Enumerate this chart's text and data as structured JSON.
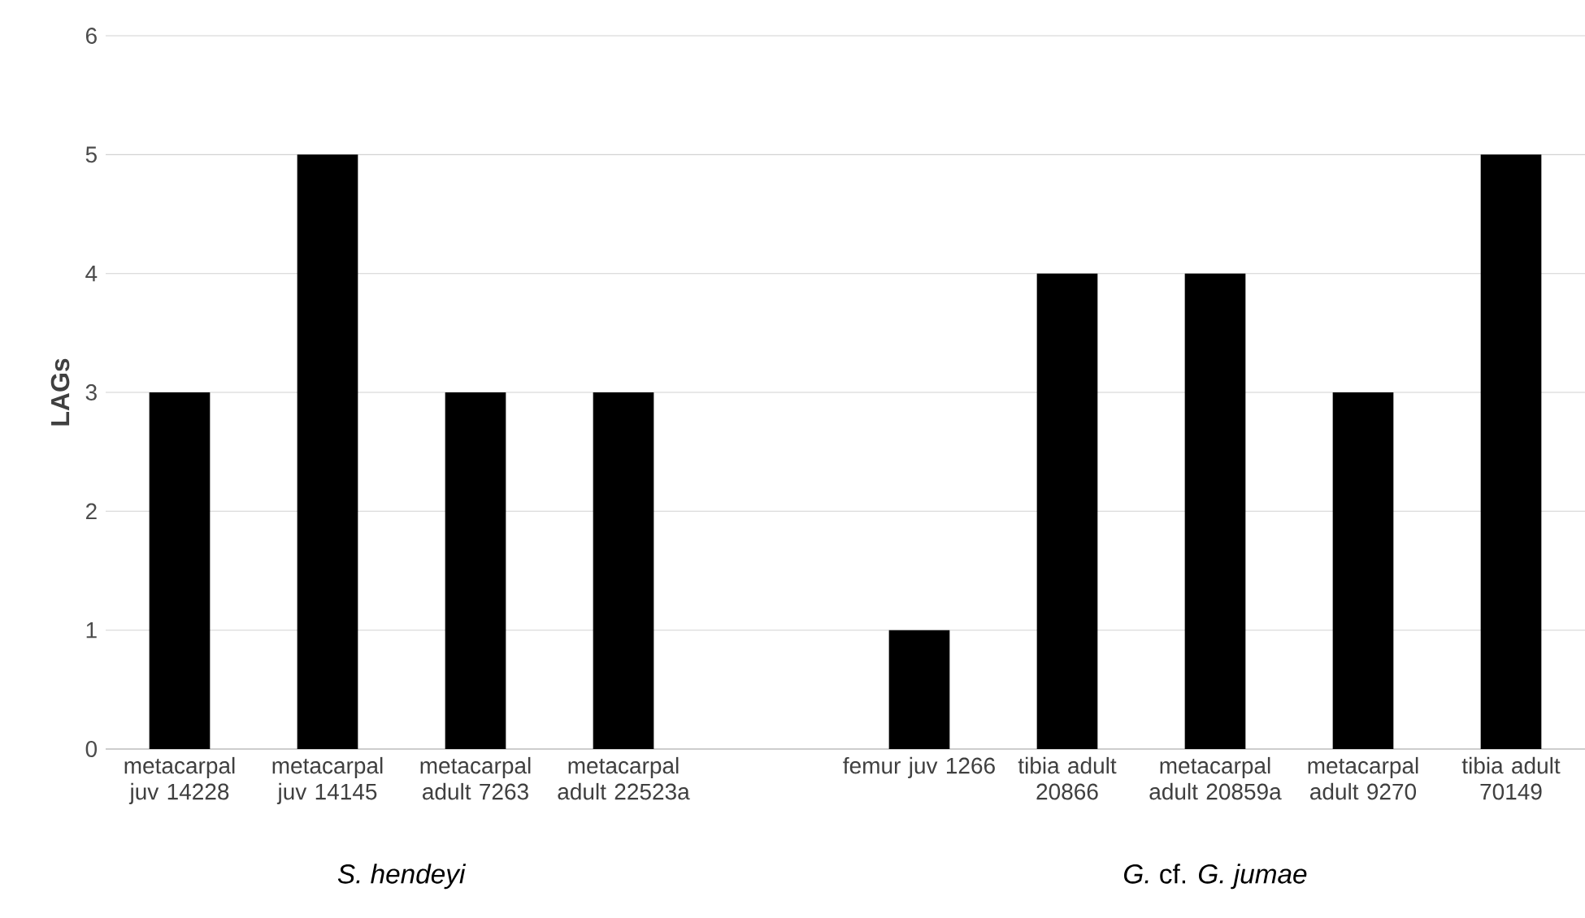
{
  "chart_data": {
    "type": "bar",
    "ylabel": "LAGs",
    "categories": [
      "metacarpal juv 14228",
      "metacarpal juv 14145",
      "metacarpal adult 7263",
      "metacarpal adult 22523a",
      null,
      "femur juv 1266",
      "tibia adult 20866",
      "metacarpal adult 20859a",
      "metacarpal adult 9270",
      "tibia adult 70149"
    ],
    "values": [
      3,
      5,
      3,
      3,
      null,
      1,
      4,
      4,
      3,
      5
    ],
    "color": "#000000",
    "ylim": [
      0,
      6
    ],
    "yticks": [
      0,
      1,
      2,
      3,
      4,
      5,
      6
    ],
    "grid": "y",
    "annotations": [
      "*S. hendeyi*",
      "*G.* cf. *G. jumae*"
    ]
  }
}
